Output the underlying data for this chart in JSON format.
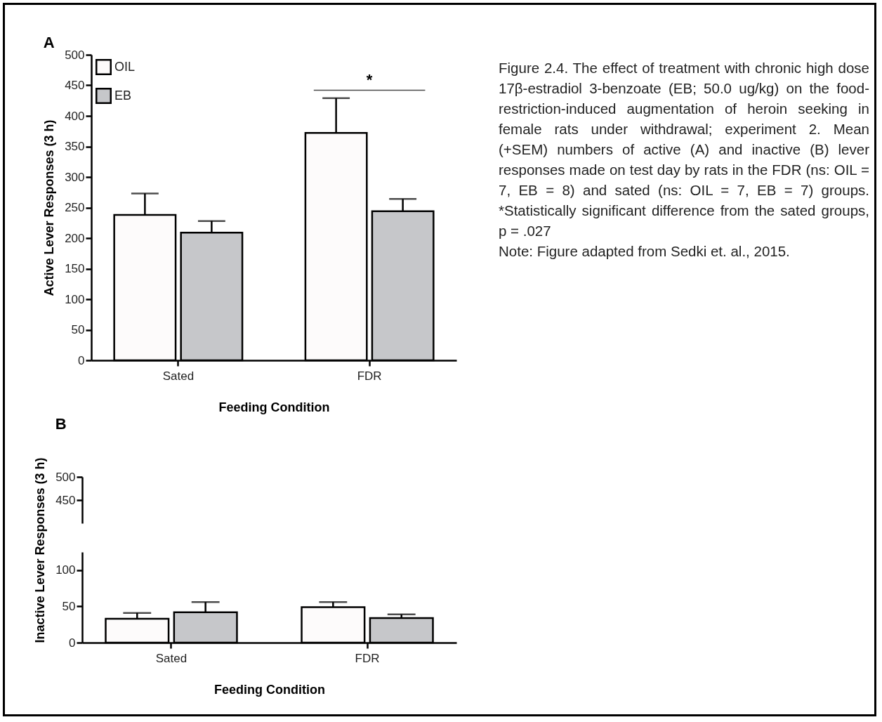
{
  "chart_data": [
    {
      "type": "bar",
      "title": "A",
      "xlabel": "Feeding Condition",
      "ylabel": "Active Lever Responses (3 h)",
      "categories": [
        "Sated",
        "FDR"
      ],
      "series": [
        {
          "name": "OIL",
          "color": "#fdfbfb",
          "values": [
            238,
            372
          ],
          "errors": [
            [
              238,
              273
            ],
            [
              372,
              429
            ]
          ]
        },
        {
          "name": "EB",
          "color": "#c6c7ca",
          "values": [
            209,
            244
          ],
          "errors": [
            [
              209,
              228
            ],
            [
              244,
              264
            ]
          ]
        }
      ],
      "ylim": [
        0,
        500
      ],
      "yticks": [
        0,
        50,
        100,
        150,
        200,
        250,
        300,
        350,
        400,
        450,
        500
      ],
      "legend": "top left",
      "grid": false,
      "annotations": [
        "*",
        "Figure 2.4. The effect of treatment with chronic high dose 17β-estradiol 3-benzoate (EB; 50.0 ug/kg) on the food-restriction-induced augmentation of heroin seeking in female rats under withdrawal; experiment 2. Mean (+SEM) numbers of active (A) and inactive (B) lever responses made on test day by rats in the FDR (ns: OIL = 7, EB = 8) and sated (ns: OIL = 7, EB = 7) groups. *Statistically significant difference from the sated groups, p = .027",
        "Note: Figure adapted from Sedki et. al., 2015."
      ]
    },
    {
      "type": "bar",
      "title": "B",
      "categories": [
        null,
        null
      ],
      "series": [
        {
          "color": "#fdfbfb",
          "values": [
            null,
            null
          ]
        },
        {
          "color": "#c6c7ca",
          "values": [
            null,
            null
          ]
        }
      ],
      "ylim": [
        400,
        500
      ],
      "yticks": [
        450,
        500
      ],
      "tick_labels": "y",
      "grid": false
    },
    {
      "type": "bar",
      "xlabel": "Feeding Condition",
      "ylabel": "Inactive Lever Responses (3 h)",
      "categories": [
        "Sated",
        "FDR"
      ],
      "series": [
        {
          "color": "#fdfbfb",
          "values": [
            33,
            49
          ],
          "errors": [
            [
              33,
              41
            ],
            [
              49,
              56
            ]
          ]
        },
        {
          "color": "#c6c7ca",
          "values": [
            42,
            34
          ],
          "errors": [
            [
              42,
              56
            ],
            [
              34,
              39
            ]
          ]
        }
      ],
      "ylim": [
        0,
        125
      ],
      "yticks": [
        0,
        50,
        100
      ],
      "grid": false
    }
  ]
}
